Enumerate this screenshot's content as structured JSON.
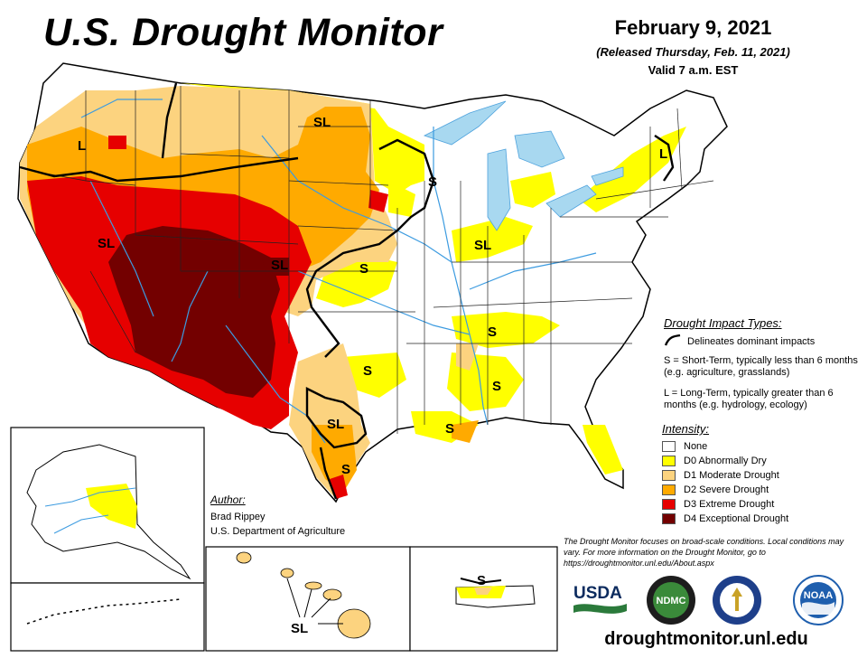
{
  "header": {
    "title": "U.S. Drought Monitor",
    "date": "February 9, 2021",
    "released": "(Released Thursday, Feb. 11, 2021)",
    "valid": "Valid 7 a.m. EST"
  },
  "map_labels": {
    "sl_montana": "SL",
    "l_oregon": "L",
    "s_minnesota": "S",
    "sl_nevada": "SL",
    "sl_colorado": "SL",
    "s_kansas": "S",
    "sl_illinois": "SL",
    "l_northeast": "L",
    "s_arkansas": "S",
    "s_texas_central": "S",
    "s_mississippi": "S",
    "sl_texas_south": "SL",
    "s_louisiana": "S",
    "s_texas_tip": "S",
    "sl_hawaii": "SL",
    "s_puerto_rico": "S"
  },
  "impact_types": {
    "heading": "Drought Impact Types:",
    "line_label": "Delineates dominant impacts",
    "s_definition": "S = Short-Term, typically less than 6 months (e.g. agriculture, grasslands)",
    "l_definition": "L = Long-Term, typically greater than 6 months (e.g. hydrology, ecology)"
  },
  "intensity": {
    "heading": "Intensity:",
    "levels": [
      {
        "label": "None",
        "color": "#ffffff"
      },
      {
        "label": "D0 Abnormally Dry",
        "color": "#ffff00"
      },
      {
        "label": "D1 Moderate Drought",
        "color": "#fcd37f"
      },
      {
        "label": "D2 Severe Drought",
        "color": "#ffaa00"
      },
      {
        "label": "D3 Extreme Drought",
        "color": "#e60000"
      },
      {
        "label": "D4 Exceptional Drought",
        "color": "#730000"
      }
    ]
  },
  "author": {
    "heading": "Author:",
    "name": "Brad Rippey",
    "org": "U.S. Department of Agriculture"
  },
  "note": "The Drought Monitor focuses on broad-scale conditions. Local conditions may vary. For more information on the Drought Monitor, go to https://droughtmonitor.unl.edu/About.aspx",
  "logos": {
    "usda": "USDA",
    "ndmc": "NDMC",
    "commerce_icon": "commerce-seal-icon",
    "noaa": "NOAA"
  },
  "website": "droughtmonitor.unl.edu"
}
